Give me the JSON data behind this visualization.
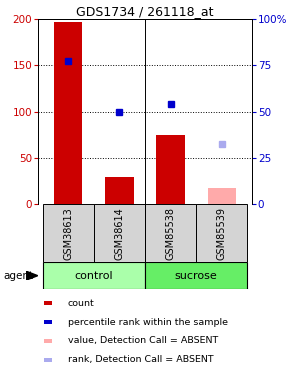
{
  "title": "GDS1734 / 261118_at",
  "samples": [
    "GSM38613",
    "GSM38614",
    "GSM85538",
    "GSM85539"
  ],
  "groups": [
    {
      "label": "control",
      "indices": [
        0,
        1
      ],
      "color": "#aaffaa"
    },
    {
      "label": "sucrose",
      "indices": [
        2,
        3
      ],
      "color": "#66ee66"
    }
  ],
  "bar_values": [
    196,
    30,
    75,
    18
  ],
  "bar_colors": [
    "#cc0000",
    "#cc0000",
    "#cc0000",
    "#ffaaaa"
  ],
  "dot_values": [
    77.5,
    50,
    54,
    32.5
  ],
  "dot_colors": [
    "#0000cc",
    "#0000cc",
    "#0000cc",
    "#aaaaee"
  ],
  "ylim_left": [
    0,
    200
  ],
  "ylim_right": [
    0,
    100
  ],
  "yticks_left": [
    0,
    50,
    100,
    150,
    200
  ],
  "yticks_right": [
    0,
    25,
    50,
    75,
    100
  ],
  "ytick_labels_right": [
    "0",
    "25",
    "50",
    "75",
    "100%"
  ],
  "left_axis_color": "#cc0000",
  "right_axis_color": "#0000cc",
  "grid_values": [
    50,
    100,
    150
  ],
  "legend": [
    {
      "label": "count",
      "color": "#cc0000"
    },
    {
      "label": "percentile rank within the sample",
      "color": "#0000cc"
    },
    {
      "label": "value, Detection Call = ABSENT",
      "color": "#ffaaaa"
    },
    {
      "label": "rank, Detection Call = ABSENT",
      "color": "#aaaaee"
    }
  ],
  "agent_label": "agent",
  "bar_width": 0.55,
  "sample_label_fontsize": 7,
  "group_label_fontsize": 8,
  "tick_fontsize": 7.5,
  "title_fontsize": 9,
  "legend_fontsize": 6.8
}
